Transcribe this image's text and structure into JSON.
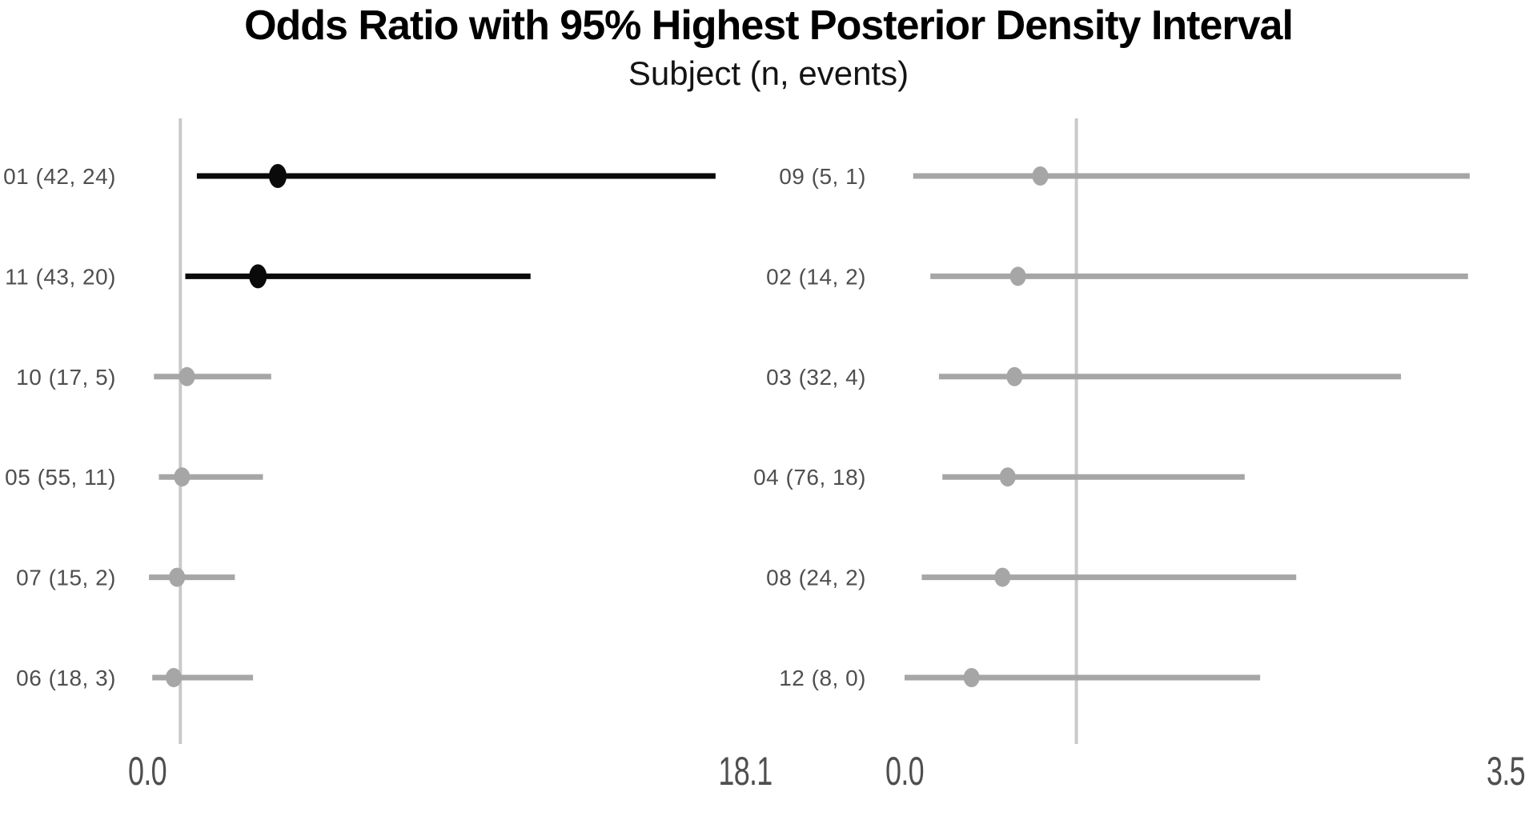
{
  "header": {
    "title": "Odds Ratio with 95% Highest Posterior Density Interval",
    "subtitle": "Subject (n, events)"
  },
  "colors": {
    "emphasis_black": "#0a0a0a",
    "muted_gray": "#a6a6a6",
    "reference_line": "#c9c9c9",
    "label_text": "#4f4f4f",
    "tick_text": "#4f4f4f",
    "title_text": "#000000"
  },
  "chart_data": [
    {
      "type": "scatter",
      "variant": "forest-plot-panel",
      "panel": "left",
      "xlabel": "",
      "ylabel": "",
      "xlim": [
        0.0,
        18.1
      ],
      "x_tick_labels": [
        "0.0",
        "18.1"
      ],
      "reference_line": 1.0,
      "grid": false,
      "rows": [
        {
          "label": "01 (42, 24)",
          "point": 3.95,
          "lower": 1.5,
          "upper": 17.2,
          "emphasis": "black"
        },
        {
          "label": "11 (43, 20)",
          "point": 3.35,
          "lower": 1.15,
          "upper": 11.6,
          "emphasis": "black"
        },
        {
          "label": "10 (17, 5)",
          "point": 1.2,
          "lower": 0.2,
          "upper": 3.75,
          "emphasis": "gray"
        },
        {
          "label": "05 (55, 11)",
          "point": 1.05,
          "lower": 0.35,
          "upper": 3.5,
          "emphasis": "gray"
        },
        {
          "label": "07 (15, 2)",
          "point": 0.9,
          "lower": 0.05,
          "upper": 2.65,
          "emphasis": "gray"
        },
        {
          "label": "06 (18, 3)",
          "point": 0.8,
          "lower": 0.15,
          "upper": 3.2,
          "emphasis": "gray"
        }
      ]
    },
    {
      "type": "scatter",
      "variant": "forest-plot-panel",
      "panel": "right",
      "xlabel": "",
      "ylabel": "",
      "xlim": [
        0.0,
        3.5
      ],
      "x_tick_labels": [
        "0.0",
        "3.5"
      ],
      "reference_line": 1.0,
      "grid": false,
      "rows": [
        {
          "label": "09 (5, 1)",
          "point": 0.79,
          "lower": 0.05,
          "upper": 3.29,
          "emphasis": "gray"
        },
        {
          "label": "02 (14, 2)",
          "point": 0.66,
          "lower": 0.15,
          "upper": 3.28,
          "emphasis": "gray"
        },
        {
          "label": "03 (32, 4)",
          "point": 0.64,
          "lower": 0.2,
          "upper": 2.89,
          "emphasis": "gray"
        },
        {
          "label": "04 (76, 18)",
          "point": 0.6,
          "lower": 0.22,
          "upper": 1.98,
          "emphasis": "gray"
        },
        {
          "label": "08 (24, 2)",
          "point": 0.57,
          "lower": 0.1,
          "upper": 2.28,
          "emphasis": "gray"
        },
        {
          "label": "12 (8, 0)",
          "point": 0.39,
          "lower": 0.0,
          "upper": 2.07,
          "emphasis": "gray"
        }
      ]
    }
  ]
}
